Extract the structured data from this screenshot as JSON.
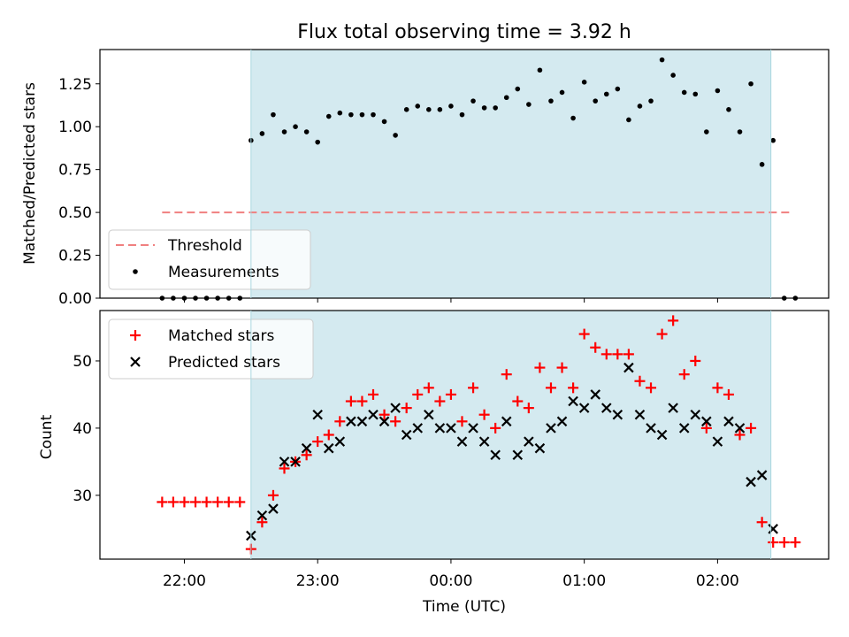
{
  "chart_data": [
    {
      "type": "scatter",
      "title": "Flux total observing time = 3.92 h",
      "ylabel": "Matched/Predicted stars",
      "xlabel": "",
      "ylim": [
        0,
        1.45
      ],
      "yticks": [
        "0.00",
        "0.25",
        "0.50",
        "0.75",
        "1.00",
        "1.25"
      ],
      "observing_window": {
        "start": "22:30",
        "end": "02:24",
        "color": "#d4eaf0"
      },
      "threshold": {
        "name": "Threshold",
        "value": 0.5,
        "x_start": "21:50",
        "x_end": "02:34",
        "color": "#f08080",
        "style": "dashed"
      },
      "series": [
        {
          "name": "Measurements",
          "color": "#000000",
          "marker": "dot",
          "x": [
            "21:50",
            "21:55",
            "22:00",
            "22:05",
            "22:10",
            "22:15",
            "22:20",
            "22:25",
            "22:30",
            "22:35",
            "22:40",
            "22:45",
            "22:50",
            "22:55",
            "23:00",
            "23:05",
            "23:10",
            "23:15",
            "23:20",
            "23:25",
            "23:30",
            "23:35",
            "23:40",
            "23:45",
            "23:50",
            "23:55",
            "00:00",
            "00:05",
            "00:10",
            "00:15",
            "00:20",
            "00:25",
            "00:30",
            "00:35",
            "00:40",
            "00:45",
            "00:50",
            "00:55",
            "01:00",
            "01:05",
            "01:10",
            "01:15",
            "01:20",
            "01:25",
            "01:30",
            "01:35",
            "01:40",
            "01:45",
            "01:50",
            "01:55",
            "02:00",
            "02:05",
            "02:10",
            "02:15",
            "02:20",
            "02:25",
            "02:30",
            "02:35"
          ],
          "y": [
            0,
            0,
            0,
            0,
            0,
            0,
            0,
            0,
            0.92,
            0.96,
            1.07,
            0.97,
            1.0,
            0.97,
            0.91,
            1.06,
            1.08,
            1.07,
            1.07,
            1.07,
            1.03,
            0.95,
            1.1,
            1.12,
            1.1,
            1.1,
            1.12,
            1.07,
            1.15,
            1.11,
            1.11,
            1.17,
            1.22,
            1.13,
            1.33,
            1.15,
            1.2,
            1.05,
            1.26,
            1.15,
            1.19,
            1.22,
            1.04,
            1.12,
            1.15,
            1.39,
            1.3,
            1.2,
            1.19,
            0.97,
            1.21,
            1.1,
            0.97,
            1.25,
            0.78,
            0.92,
            0,
            0
          ]
        }
      ],
      "legend": {
        "position": "lower-left"
      }
    },
    {
      "type": "scatter",
      "title": "",
      "ylabel": "Count",
      "xlabel": "Time (UTC)",
      "ylim": [
        20.5,
        57.5
      ],
      "yticks": [
        "30",
        "40",
        "50"
      ],
      "xticks": [
        "22:00",
        "23:00",
        "00:00",
        "01:00",
        "02:00"
      ],
      "observing_window": {
        "start": "22:30",
        "end": "02:24",
        "color": "#d4eaf0"
      },
      "series": [
        {
          "name": "Matched stars",
          "color": "#ff0000",
          "marker": "plus",
          "x": [
            "21:50",
            "21:55",
            "22:00",
            "22:05",
            "22:10",
            "22:15",
            "22:20",
            "22:25",
            "22:30",
            "22:35",
            "22:40",
            "22:45",
            "22:50",
            "22:55",
            "23:00",
            "23:05",
            "23:10",
            "23:15",
            "23:20",
            "23:25",
            "23:30",
            "23:35",
            "23:40",
            "23:45",
            "23:50",
            "23:55",
            "00:00",
            "00:05",
            "00:10",
            "00:15",
            "00:20",
            "00:25",
            "00:30",
            "00:35",
            "00:40",
            "00:45",
            "00:50",
            "00:55",
            "01:00",
            "01:05",
            "01:10",
            "01:15",
            "01:20",
            "01:25",
            "01:30",
            "01:35",
            "01:40",
            "01:45",
            "01:50",
            "01:55",
            "02:00",
            "02:05",
            "02:10",
            "02:15",
            "02:20",
            "02:25",
            "02:30",
            "02:35"
          ],
          "y": [
            29,
            29,
            29,
            29,
            29,
            29,
            29,
            29,
            22,
            26,
            30,
            34,
            35,
            36,
            38,
            39,
            41,
            44,
            44,
            45,
            42,
            41,
            43,
            45,
            46,
            44,
            45,
            41,
            46,
            42,
            40,
            48,
            44,
            43,
            49,
            46,
            49,
            46,
            54,
            52,
            51,
            51,
            51,
            47,
            46,
            54,
            56,
            48,
            50,
            40,
            46,
            45,
            39,
            40,
            26,
            23,
            23,
            23
          ]
        },
        {
          "name": "Predicted stars",
          "color": "#000000",
          "marker": "x",
          "x": [
            "22:30",
            "22:35",
            "22:40",
            "22:45",
            "22:50",
            "22:55",
            "23:00",
            "23:05",
            "23:10",
            "23:15",
            "23:20",
            "23:25",
            "23:30",
            "23:35",
            "23:40",
            "23:45",
            "23:50",
            "23:55",
            "00:00",
            "00:05",
            "00:10",
            "00:15",
            "00:20",
            "00:25",
            "00:30",
            "00:35",
            "00:40",
            "00:45",
            "00:50",
            "00:55",
            "01:00",
            "01:05",
            "01:10",
            "01:15",
            "01:20",
            "01:25",
            "01:30",
            "01:35",
            "01:40",
            "01:45",
            "01:50",
            "01:55",
            "02:00",
            "02:05",
            "02:10",
            "02:15",
            "02:20",
            "02:25"
          ],
          "y": [
            24,
            27,
            28,
            35,
            35,
            37,
            42,
            37,
            38,
            41,
            41,
            42,
            41,
            43,
            39,
            40,
            42,
            40,
            40,
            38,
            40,
            38,
            36,
            41,
            36,
            38,
            37,
            40,
            41,
            44,
            43,
            45,
            43,
            42,
            49,
            42,
            40,
            39,
            43,
            40,
            42,
            41,
            38,
            41,
            40,
            32,
            33,
            25
          ]
        }
      ],
      "legend": {
        "position": "upper-left"
      }
    }
  ]
}
